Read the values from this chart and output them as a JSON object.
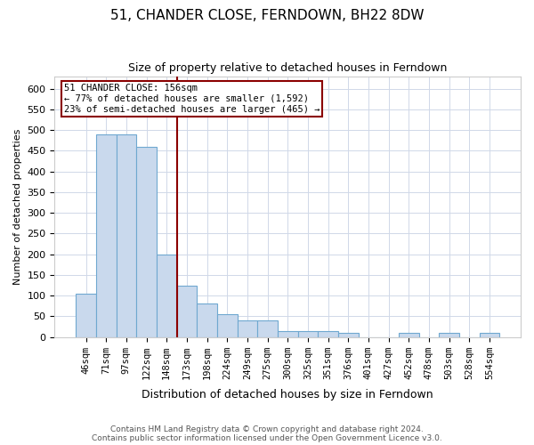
{
  "title": "51, CHANDER CLOSE, FERNDOWN, BH22 8DW",
  "subtitle": "Size of property relative to detached houses in Ferndown",
  "xlabel": "Distribution of detached houses by size in Ferndown",
  "ylabel": "Number of detached properties",
  "categories": [
    "46sqm",
    "71sqm",
    "97sqm",
    "122sqm",
    "148sqm",
    "173sqm",
    "198sqm",
    "224sqm",
    "249sqm",
    "275sqm",
    "300sqm",
    "325sqm",
    "351sqm",
    "376sqm",
    "401sqm",
    "427sqm",
    "452sqm",
    "478sqm",
    "503sqm",
    "528sqm",
    "554sqm"
  ],
  "values": [
    105,
    490,
    490,
    460,
    200,
    125,
    80,
    55,
    40,
    40,
    15,
    15,
    15,
    10,
    0,
    0,
    10,
    0,
    10,
    0,
    10
  ],
  "bar_color": "#c9d9ed",
  "bar_edge_color": "#6fa8d0",
  "vline_x": 4.5,
  "vline_color": "#8b0000",
  "annotation_box_color": "#8b0000",
  "annotation_text_line1": "51 CHANDER CLOSE: 156sqm",
  "annotation_text_line2": "← 77% of detached houses are smaller (1,592)",
  "annotation_text_line3": "23% of semi-detached houses are larger (465) →",
  "ylim": [
    0,
    630
  ],
  "yticks": [
    0,
    50,
    100,
    150,
    200,
    250,
    300,
    350,
    400,
    450,
    500,
    550,
    600
  ],
  "footer_line1": "Contains HM Land Registry data © Crown copyright and database right 2024.",
  "footer_line2": "Contains public sector information licensed under the Open Government Licence v3.0.",
  "background_color": "#ffffff",
  "grid_color": "#d0d8e8"
}
